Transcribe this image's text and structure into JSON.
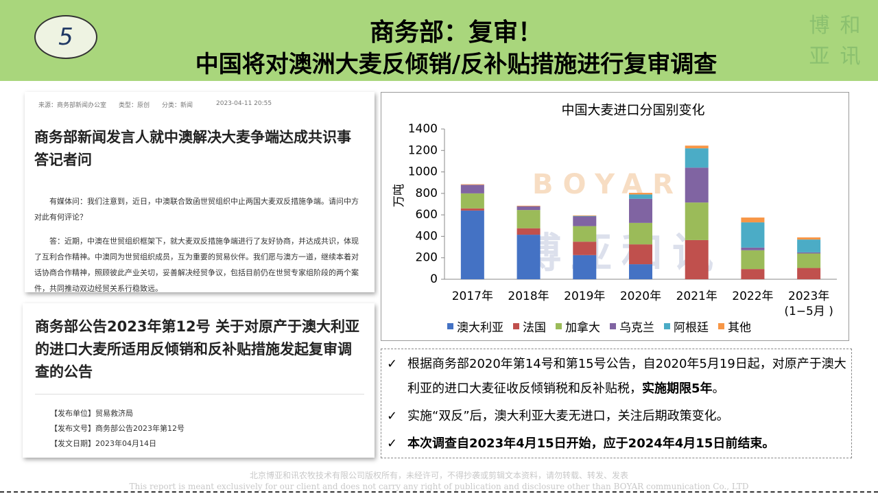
{
  "header": {
    "badge": "5",
    "title": "商务部：复审！",
    "subtitle": "中国将对澳洲大麦反倾销/反补贴措施进行复审调查",
    "logo": [
      "博",
      "和",
      "亚",
      "讯"
    ]
  },
  "article1": {
    "meta": "来源：商务部新闻办公室　　类型：原创　　分类：新闻",
    "date": "2023-04-11 20:55",
    "heading": "商务部新闻发言人就中澳解决大麦争端达成共识事答记者问",
    "paragraphs": [
      "有媒体问：我们注意到，近日，中澳联合致函世贸组织中止两国大麦双反措施争端。请问中方对此有何评论？",
      "答：近期，中澳在世贸组织框架下，就大麦双反措施争端进行了友好协商，并达成共识，体现了互利合作精神。中澳同为世贸组织成员，互为重要的贸易伙伴。我们愿与澳方一道，继续本着对话协商合作精神，照顾彼此产业关切，妥善解决经贸争议，包括目前仍在世贸专家组阶段的两个案件，共同推动双边经贸关系行稳致远。"
    ]
  },
  "article2": {
    "heading": "商务部公告2023年第12号 关于对原产于澳大利亚的进口大麦所适用反倾销和反补贴措施发起复审调查的公告",
    "fields": [
      "【发布单位】贸易救济局",
      "【发布文号】商务部公告2023年第12号",
      "【发文日期】2023年04月14日"
    ]
  },
  "chart_data": {
    "type": "stacked_bar",
    "title": "中国大麦进口分国别变化",
    "ylabel": "万吨",
    "categories": [
      "2017年",
      "2018年",
      "2019年",
      "2020年",
      "2021年",
      "2022年",
      "2023年\n(1−5月 )"
    ],
    "series": [
      {
        "name": "澳大利亚",
        "color": "#4472c4",
        "values": [
          640,
          415,
          225,
          140,
          0,
          0,
          0
        ]
      },
      {
        "name": "法国",
        "color": "#c0504d",
        "values": [
          20,
          60,
          125,
          185,
          365,
          95,
          105
        ]
      },
      {
        "name": "加拿大",
        "color": "#9bbb59",
        "values": [
          140,
          170,
          145,
          200,
          350,
          175,
          135
        ]
      },
      {
        "name": "乌克兰",
        "color": "#8064a2",
        "values": [
          80,
          35,
          90,
          225,
          325,
          25,
          10
        ]
      },
      {
        "name": "阿根廷",
        "color": "#4bacc6",
        "values": [
          0,
          0,
          5,
          40,
          180,
          235,
          120
        ]
      },
      {
        "name": "其他",
        "color": "#f79646",
        "values": [
          5,
          5,
          5,
          15,
          25,
          45,
          20
        ]
      }
    ],
    "ylim": [
      0,
      1400
    ],
    "yticks": [
      0,
      200,
      400,
      600,
      800,
      1000,
      1200,
      1400
    ],
    "legend": "bottom",
    "watermark": {
      "latin": "BOYAR",
      "cjk": "博亚和讯"
    }
  },
  "notes": {
    "marker": "✓",
    "items": [
      [
        {
          "text": "根据商务部2020年第14号和第15号公告，自2020年5月19日起，对原产于澳大利亚的进口大麦征收反倾销税和反补贴税，"
        },
        {
          "text": "实施期限5年",
          "bold": true
        },
        {
          "text": "。"
        }
      ],
      [
        {
          "text": "实施“双反”后，澳大利亚大麦无进口，关注后期政策变化。"
        }
      ],
      [
        {
          "text": "本次调查自2023年4月15日开始，应于2024年4月15日前结束。",
          "bold": true
        }
      ]
    ]
  },
  "footer": [
    "北京博亚和讯农牧技术有限公司版权所有，未经许可，不得抄袭或剪辑文本资料，请勿转载、转发、发表",
    "This report is meant exclusively for our client and does not carry any right of publication and disclosure other than BOYAR communication Co., LTD"
  ]
}
